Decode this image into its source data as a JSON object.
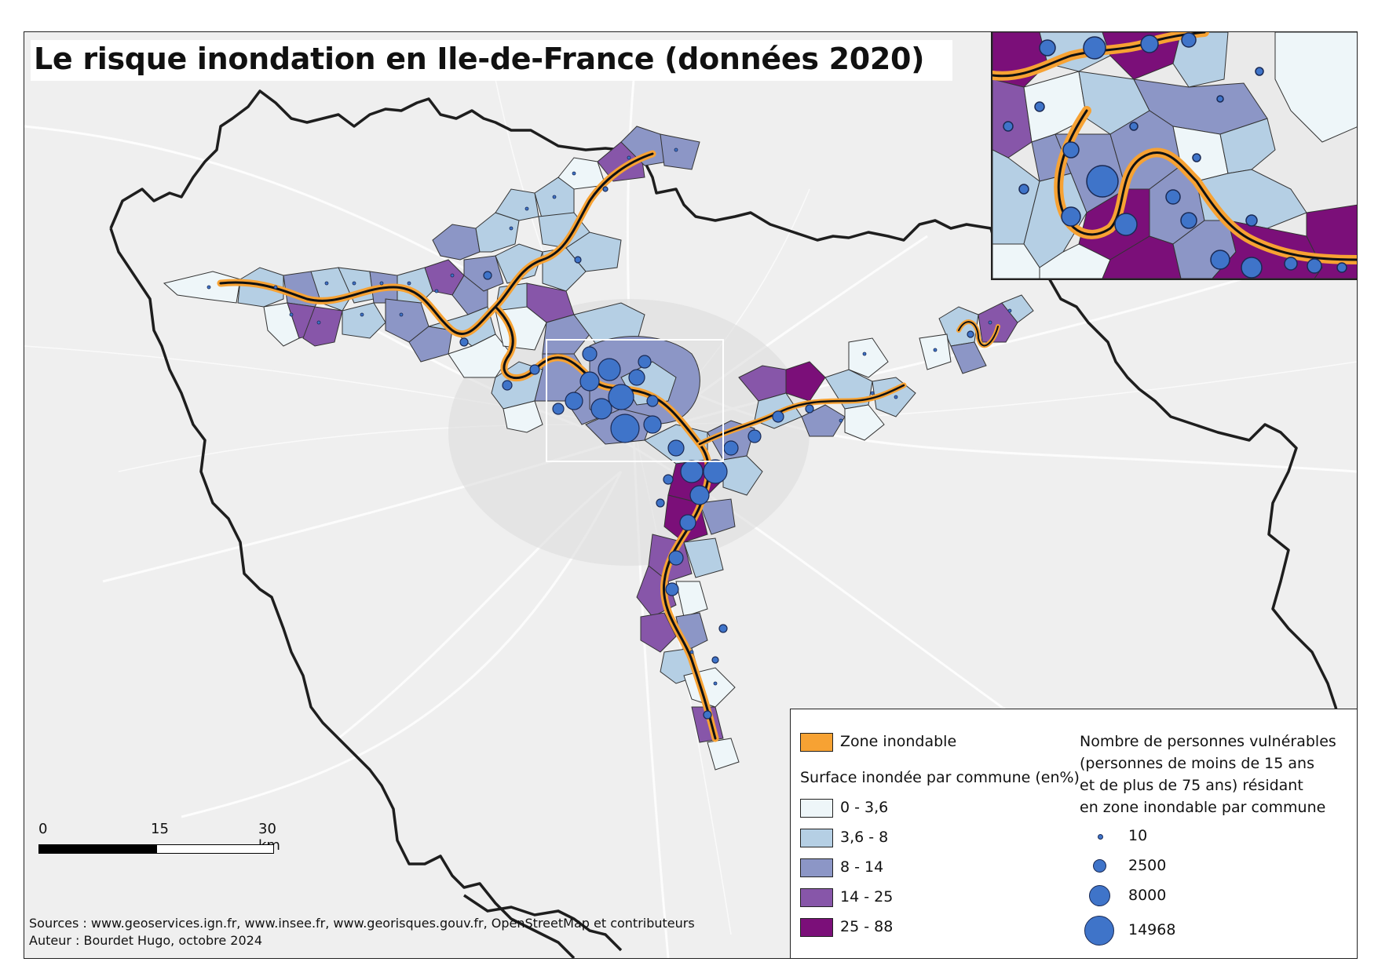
{
  "title": "Le risque inondation en Ile-de-France (données 2020)",
  "colors": {
    "zone_inondable": "#f7a233",
    "class_1": "#eef6f9",
    "class_2": "#b5cfe4",
    "class_3": "#8c96c6",
    "class_4": "#8756a9",
    "class_5": "#7b0f79",
    "bubble": "#3f74c9",
    "region_border": "#1e1e1e"
  },
  "legend": {
    "zone_label": "Zone inondable",
    "surface_title": "Surface inondée par commune (en%)",
    "classes": [
      {
        "label": "0 - 3,6",
        "color": "#eef6f9"
      },
      {
        "label": "3,6 - 8",
        "color": "#b5cfe4"
      },
      {
        "label": "8 - 14",
        "color": "#8c96c6"
      },
      {
        "label": "14 - 25",
        "color": "#8756a9"
      },
      {
        "label": "25 - 88",
        "color": "#7b0f79"
      }
    ],
    "people_title_1": "Nombre de personnes vulnérables",
    "people_title_2": "(personnes de moins de 15 ans",
    "people_title_3": "et de plus de 75 ans) résidant",
    "people_title_4": "en zone inondable par commune",
    "bubbles": [
      {
        "label": "10",
        "value": 10
      },
      {
        "label": "2500",
        "value": 2500
      },
      {
        "label": "8000",
        "value": 8000
      },
      {
        "label": "14968",
        "value": 14968
      }
    ]
  },
  "scale_bar": {
    "labels": [
      "0",
      "15",
      "30 km"
    ]
  },
  "sources": {
    "line1": "Sources : www.geoservices.ign.fr, www.insee.fr, www.georisques.gouv.fr, OpenStreetMap et contributeurs",
    "line2": "Auteur : Bourdet Hugo, octobre 2024"
  }
}
